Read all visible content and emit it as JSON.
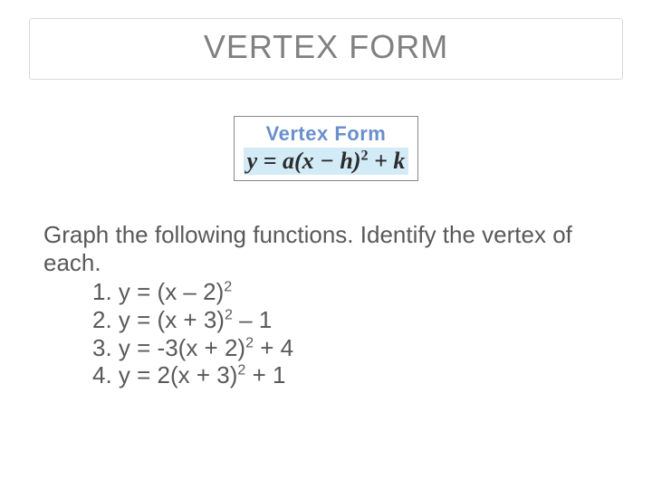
{
  "title": "VERTEX FORM",
  "formula": {
    "label": "Vertex Form",
    "equation_html": "y = a(x − h)<sup>2</sup> + k",
    "label_color": "#6a8fcc",
    "highlight_color": "#d2ebf6",
    "text_color": "#2b2b2b",
    "border_color": "#888888"
  },
  "instructions": "Graph the following functions. Identify the vertex of each.",
  "items": [
    "1. y = (x – 2)<sup>2</sup>",
    "2. y = (x + 3)<sup>2</sup> – 1",
    "3. y = -3(x + 2)<sup>2</sup> + 4",
    "4. y = 2(x + 3)<sup>2</sup> + 1"
  ],
  "colors": {
    "title_text": "#808080",
    "title_border": "#d9d9d9",
    "body_text": "#595959",
    "background": "#ffffff"
  },
  "typography": {
    "title_fontsize": 36,
    "body_fontsize": 26,
    "formula_label_fontsize": 22,
    "formula_eq_fontsize": 26
  }
}
